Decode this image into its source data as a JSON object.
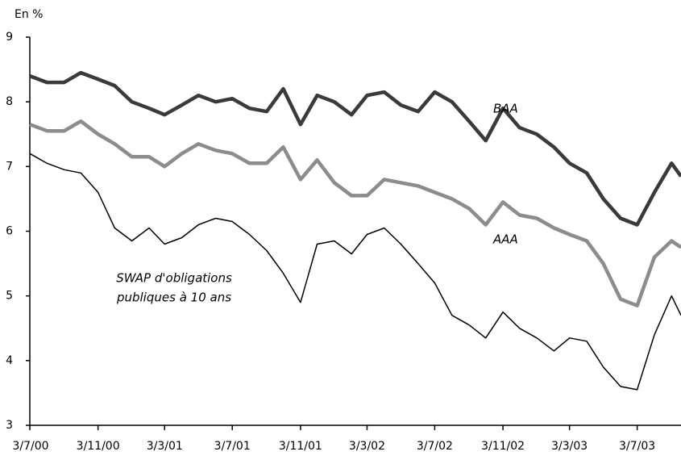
{
  "chart_data": {
    "type": "line",
    "y_axis_label": "En %",
    "x": [
      "2000-07-03",
      "2000-08-03",
      "2000-09-03",
      "2000-10-03",
      "2000-11-03",
      "2000-12-03",
      "2001-01-03",
      "2001-02-03",
      "2001-03-03",
      "2001-04-03",
      "2001-05-03",
      "2001-06-03",
      "2001-07-03",
      "2001-08-03",
      "2001-09-03",
      "2001-10-03",
      "2001-11-03",
      "2001-12-03",
      "2002-01-03",
      "2002-02-03",
      "2002-03-03",
      "2002-04-03",
      "2002-05-03",
      "2002-06-03",
      "2002-07-03",
      "2002-08-03",
      "2002-09-03",
      "2002-10-03",
      "2002-11-03",
      "2002-12-03",
      "2003-01-03",
      "2003-02-03",
      "2003-03-03",
      "2003-04-03",
      "2003-05-03",
      "2003-06-03",
      "2003-07-03",
      "2003-08-03",
      "2003-09-03",
      "2003-09-20"
    ],
    "series": [
      {
        "name": "BAA",
        "color": "#3a3a3a",
        "width": 4.5,
        "values": [
          8.4,
          8.3,
          8.3,
          8.45,
          8.35,
          8.25,
          8.0,
          7.9,
          7.8,
          7.95,
          8.1,
          8.0,
          8.05,
          7.9,
          7.85,
          8.2,
          7.65,
          8.1,
          8.0,
          7.8,
          8.1,
          8.15,
          7.95,
          7.85,
          8.15,
          8.0,
          7.7,
          7.4,
          7.9,
          7.6,
          7.5,
          7.3,
          7.05,
          6.9,
          6.5,
          6.2,
          6.1,
          6.6,
          7.05,
          6.85
        ]
      },
      {
        "name": "AAA",
        "color": "#8c8c8c",
        "width": 4.5,
        "values": [
          7.65,
          7.55,
          7.55,
          7.7,
          7.5,
          7.35,
          7.15,
          7.15,
          7.0,
          7.2,
          7.35,
          7.25,
          7.2,
          7.05,
          7.05,
          7.3,
          6.8,
          7.1,
          6.75,
          6.55,
          6.55,
          6.8,
          6.75,
          6.7,
          6.6,
          6.5,
          6.35,
          6.1,
          6.45,
          6.25,
          6.2,
          6.05,
          5.95,
          5.85,
          5.5,
          4.95,
          4.85,
          5.6,
          5.85,
          5.75
        ]
      },
      {
        "color": "#000000",
        "width": 1.5,
        "values": [
          7.2,
          7.05,
          6.95,
          6.9,
          6.6,
          6.05,
          5.85,
          6.05,
          5.8,
          5.9,
          6.1,
          6.2,
          6.15,
          5.95,
          5.7,
          5.35,
          4.9,
          5.8,
          5.85,
          5.65,
          5.95,
          6.05,
          5.8,
          5.5,
          5.2,
          4.7,
          4.55,
          4.35,
          4.75,
          4.5,
          4.35,
          4.15,
          4.35,
          4.3,
          3.9,
          3.6,
          3.55,
          4.4,
          5.0,
          4.7
        ]
      }
    ],
    "annotations": [
      {
        "text": "SWAP d'obligations"
      },
      {
        "text": "publiques à 10 ans"
      }
    ],
    "xlim": [
      "2000-07-03",
      "2003-09-20"
    ],
    "xticks": [
      {
        "value": "2000-07-03",
        "label": "3/7/00"
      },
      {
        "value": "2000-11-03",
        "label": "3/11/00"
      },
      {
        "value": "2001-03-03",
        "label": "3/3/01"
      },
      {
        "value": "2001-07-03",
        "label": "3/7/01"
      },
      {
        "value": "2001-11-03",
        "label": "3/11/01"
      },
      {
        "value": "2002-03-03",
        "label": "3/3/02"
      },
      {
        "value": "2002-07-03",
        "label": "3/7/02"
      },
      {
        "value": "2002-11-03",
        "label": "3/11/02"
      },
      {
        "value": "2003-03-03",
        "label": "3/3/03"
      },
      {
        "value": "2003-07-03",
        "label": "3/7/03"
      }
    ],
    "ylim": [
      3,
      9
    ],
    "yticks": [
      3,
      4,
      5,
      6,
      7,
      8,
      9
    ],
    "grid": false
  }
}
